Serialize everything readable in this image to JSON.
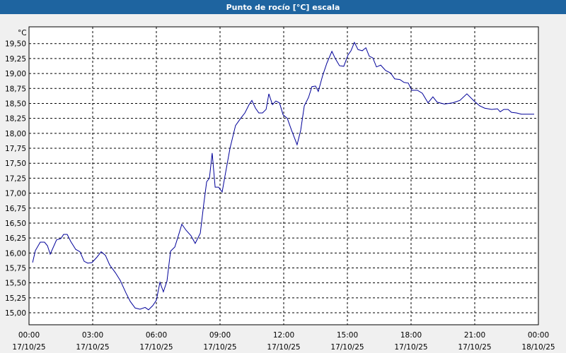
{
  "chart_data": {
    "type": "line",
    "title": "Punto de rocío [°C] escala",
    "y_label": "°C",
    "xlim": [
      0,
      24
    ],
    "ylim": [
      14.8,
      19.78
    ],
    "grid": true,
    "xticks": [
      {
        "value": 0,
        "label": [
          "00:00",
          "17/10/25"
        ]
      },
      {
        "value": 3,
        "label": [
          "03:00",
          "17/10/25"
        ]
      },
      {
        "value": 6,
        "label": [
          "06:00",
          "17/10/25"
        ]
      },
      {
        "value": 9,
        "label": [
          "09:00",
          "17/10/25"
        ]
      },
      {
        "value": 12,
        "label": [
          "12:00",
          "17/10/25"
        ]
      },
      {
        "value": 15,
        "label": [
          "15:00",
          "17/10/25"
        ]
      },
      {
        "value": 18,
        "label": [
          "18:00",
          "17/10/25"
        ]
      },
      {
        "value": 21,
        "label": [
          "21:00",
          "17/10/25"
        ]
      },
      {
        "value": 24,
        "label": [
          "00:00",
          "18/10/25"
        ]
      }
    ],
    "yticks": [
      {
        "value": 15,
        "label": "15,00"
      },
      {
        "value": 15.25,
        "label": "15,25"
      },
      {
        "value": 15.5,
        "label": "15,50"
      },
      {
        "value": 15.75,
        "label": "15,75"
      },
      {
        "value": 16,
        "label": "16,00"
      },
      {
        "value": 16.25,
        "label": "16,25"
      },
      {
        "value": 16.5,
        "label": "16,50"
      },
      {
        "value": 16.75,
        "label": "16,75"
      },
      {
        "value": 17,
        "label": "17,00"
      },
      {
        "value": 17.25,
        "label": "17,25"
      },
      {
        "value": 17.5,
        "label": "17,50"
      },
      {
        "value": 17.75,
        "label": "17,75"
      },
      {
        "value": 18,
        "label": "18,00"
      },
      {
        "value": 18.25,
        "label": "18,25"
      },
      {
        "value": 18.5,
        "label": "18,50"
      },
      {
        "value": 18.75,
        "label": "18,75"
      },
      {
        "value": 19,
        "label": "19,00"
      },
      {
        "value": 19.25,
        "label": "19,25"
      },
      {
        "value": 19.5,
        "label": "19,50"
      }
    ],
    "series": [
      {
        "color": "#000099",
        "x": [
          0.17,
          0.3,
          0.53,
          0.73,
          0.87,
          1.0,
          1.3,
          1.5,
          1.63,
          1.8,
          1.97,
          2.2,
          2.4,
          2.6,
          2.77,
          2.97,
          3.2,
          3.4,
          3.6,
          3.8,
          4.07,
          4.3,
          4.57,
          4.77,
          5.0,
          5.23,
          5.47,
          5.63,
          5.83,
          6.0,
          6.17,
          6.33,
          6.5,
          6.67,
          6.87,
          7.03,
          7.2,
          7.4,
          7.63,
          7.83,
          8.07,
          8.23,
          8.37,
          8.5,
          8.63,
          8.77,
          8.93,
          9.1,
          9.23,
          9.47,
          9.73,
          9.97,
          10.17,
          10.37,
          10.5,
          10.67,
          10.83,
          11.0,
          11.17,
          11.3,
          11.47,
          11.63,
          11.8,
          11.97,
          12.17,
          12.37,
          12.63,
          12.8,
          12.97,
          13.17,
          13.33,
          13.5,
          13.63,
          13.83,
          14.03,
          14.27,
          14.43,
          14.63,
          14.83,
          15.03,
          15.17,
          15.33,
          15.5,
          15.7,
          15.87,
          16.03,
          16.2,
          16.37,
          16.57,
          16.8,
          17.03,
          17.23,
          17.47,
          17.67,
          17.87,
          18.03,
          18.3,
          18.53,
          18.8,
          19.03,
          19.23,
          19.57,
          19.97,
          20.3,
          20.63,
          20.97,
          21.23,
          21.47,
          21.8,
          22.07,
          22.2,
          22.37,
          22.57,
          22.73,
          22.97,
          23.2,
          23.8
        ],
        "values": [
          15.84,
          16.04,
          16.18,
          16.18,
          16.12,
          15.98,
          16.22,
          16.24,
          16.31,
          16.31,
          16.19,
          16.06,
          16.02,
          15.86,
          15.83,
          15.84,
          15.93,
          16.02,
          15.96,
          15.8,
          15.67,
          15.54,
          15.33,
          15.19,
          15.08,
          15.06,
          15.09,
          15.05,
          15.12,
          15.21,
          15.51,
          15.35,
          15.53,
          16.03,
          16.1,
          16.28,
          16.48,
          16.38,
          16.29,
          16.16,
          16.33,
          16.81,
          17.19,
          17.25,
          17.67,
          17.1,
          17.1,
          17.02,
          17.28,
          17.75,
          18.13,
          18.25,
          18.34,
          18.48,
          18.55,
          18.42,
          18.34,
          18.34,
          18.4,
          18.66,
          18.48,
          18.54,
          18.51,
          18.31,
          18.25,
          18.05,
          17.81,
          18.05,
          18.46,
          18.6,
          18.78,
          18.79,
          18.7,
          18.96,
          19.17,
          19.37,
          19.25,
          19.13,
          19.12,
          19.31,
          19.38,
          19.52,
          19.4,
          19.38,
          19.43,
          19.29,
          19.26,
          19.11,
          19.14,
          19.05,
          19.01,
          18.91,
          18.9,
          18.85,
          18.84,
          18.72,
          18.72,
          18.67,
          18.51,
          18.61,
          18.52,
          18.49,
          18.51,
          18.55,
          18.66,
          18.54,
          18.46,
          18.42,
          18.4,
          18.41,
          18.36,
          18.4,
          18.4,
          18.35,
          18.34,
          18.32,
          18.32
        ]
      }
    ]
  }
}
